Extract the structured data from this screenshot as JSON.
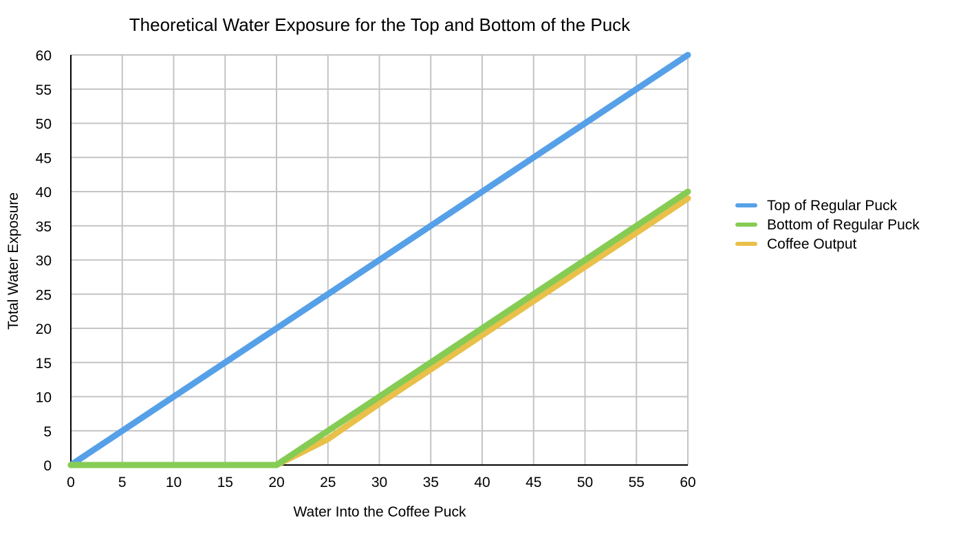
{
  "chart_data": {
    "type": "line",
    "title": "Theoretical Water Exposure for the Top and Bottom of the Puck",
    "xlabel": "Water Into the Coffee Puck",
    "ylabel": "Total Water Exposure",
    "xlim": [
      0,
      60
    ],
    "ylim": [
      0,
      60
    ],
    "xticks": [
      0,
      5,
      10,
      15,
      20,
      25,
      30,
      35,
      40,
      45,
      50,
      55,
      60
    ],
    "yticks": [
      0,
      5,
      10,
      15,
      20,
      25,
      30,
      35,
      40,
      45,
      50,
      55,
      60
    ],
    "grid": true,
    "legend_position": "right",
    "series": [
      {
        "name": "Top of Regular Puck",
        "color": "#56a0e8",
        "x": [
          0,
          60
        ],
        "y": [
          0,
          60
        ]
      },
      {
        "name": "Coffee Output",
        "color": "#e8c04a",
        "x": [
          0,
          20,
          25,
          30,
          35,
          40,
          45,
          50,
          55,
          60
        ],
        "y": [
          0,
          0,
          3.8,
          9,
          14,
          19,
          24,
          29,
          34,
          39
        ]
      },
      {
        "name": "Bottom of Regular Puck",
        "color": "#86cc54",
        "x": [
          0,
          20,
          60
        ],
        "y": [
          0,
          0,
          40
        ]
      }
    ],
    "legend_order": [
      "Top of Regular Puck",
      "Bottom of Regular Puck",
      "Coffee Output"
    ]
  }
}
